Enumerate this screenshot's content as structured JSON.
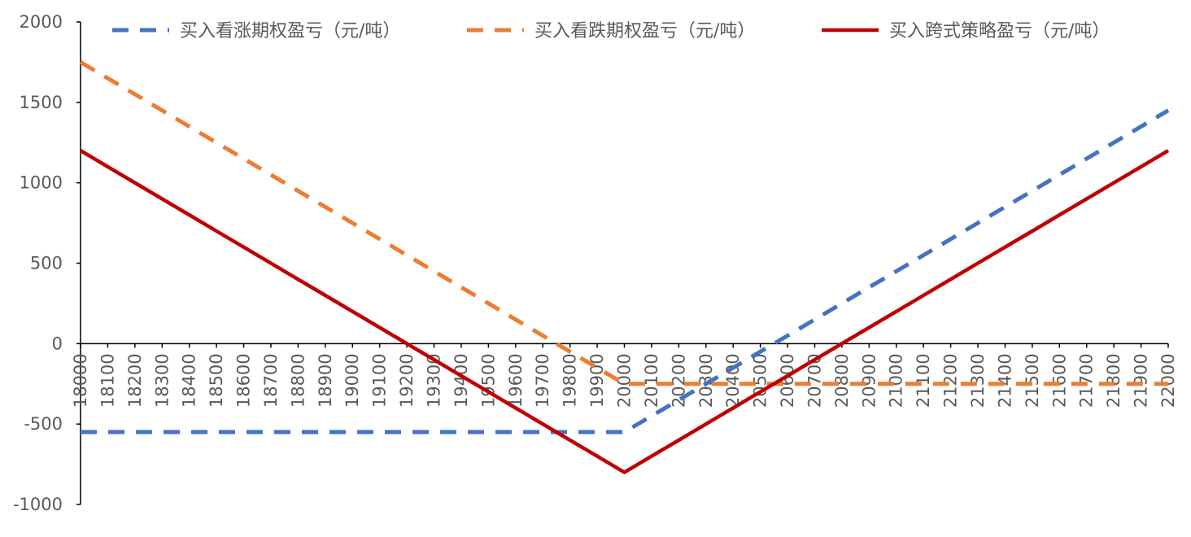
{
  "chart_data": {
    "type": "line",
    "title": "",
    "xlabel": "",
    "ylabel": "",
    "ylim": [
      -1000,
      2000
    ],
    "yticks": [
      -1000,
      -500,
      0,
      500,
      1000,
      1500,
      2000
    ],
    "x": [
      18000,
      18100,
      18200,
      18300,
      18400,
      18500,
      18600,
      18700,
      18800,
      18900,
      19000,
      19100,
      19200,
      19300,
      19400,
      19500,
      19600,
      19700,
      19800,
      19900,
      20000,
      20100,
      20200,
      20300,
      20400,
      20500,
      20600,
      20700,
      20800,
      20900,
      21000,
      21100,
      21200,
      21300,
      21400,
      21500,
      21600,
      21700,
      21800,
      21900,
      22000
    ],
    "grid": false,
    "legend_position": "top",
    "series": [
      {
        "name": "买入看涨期权盈亏（元/吨）",
        "color": "#4472C4",
        "dash": true,
        "values": [
          -550,
          -550,
          -550,
          -550,
          -550,
          -550,
          -550,
          -550,
          -550,
          -550,
          -550,
          -550,
          -550,
          -550,
          -550,
          -550,
          -550,
          -550,
          -550,
          -550,
          -550,
          -450,
          -350,
          -250,
          -150,
          -50,
          50,
          150,
          250,
          350,
          450,
          550,
          650,
          750,
          850,
          950,
          1050,
          1150,
          1250,
          1350,
          1450
        ]
      },
      {
        "name": "买入看跌期权盈亏（元/吨）",
        "color": "#ED7D31",
        "dash": true,
        "values": [
          1750,
          1650,
          1550,
          1450,
          1350,
          1250,
          1150,
          1050,
          950,
          850,
          750,
          650,
          550,
          450,
          350,
          250,
          150,
          50,
          -50,
          -150,
          -250,
          -250,
          -250,
          -250,
          -250,
          -250,
          -250,
          -250,
          -250,
          -250,
          -250,
          -250,
          -250,
          -250,
          -250,
          -250,
          -250,
          -250,
          -250,
          -250,
          -250
        ]
      },
      {
        "name": "买入跨式策略盈亏（元/吨）",
        "color": "#C00000",
        "dash": false,
        "values": [
          1200,
          1100,
          1000,
          900,
          800,
          700,
          600,
          500,
          400,
          300,
          200,
          100,
          0,
          -100,
          -200,
          -300,
          -400,
          -500,
          -600,
          -700,
          -800,
          -700,
          -600,
          -500,
          -400,
          -300,
          -200,
          -100,
          0,
          100,
          200,
          300,
          400,
          500,
          600,
          700,
          800,
          900,
          1000,
          1100,
          1200
        ]
      }
    ]
  }
}
